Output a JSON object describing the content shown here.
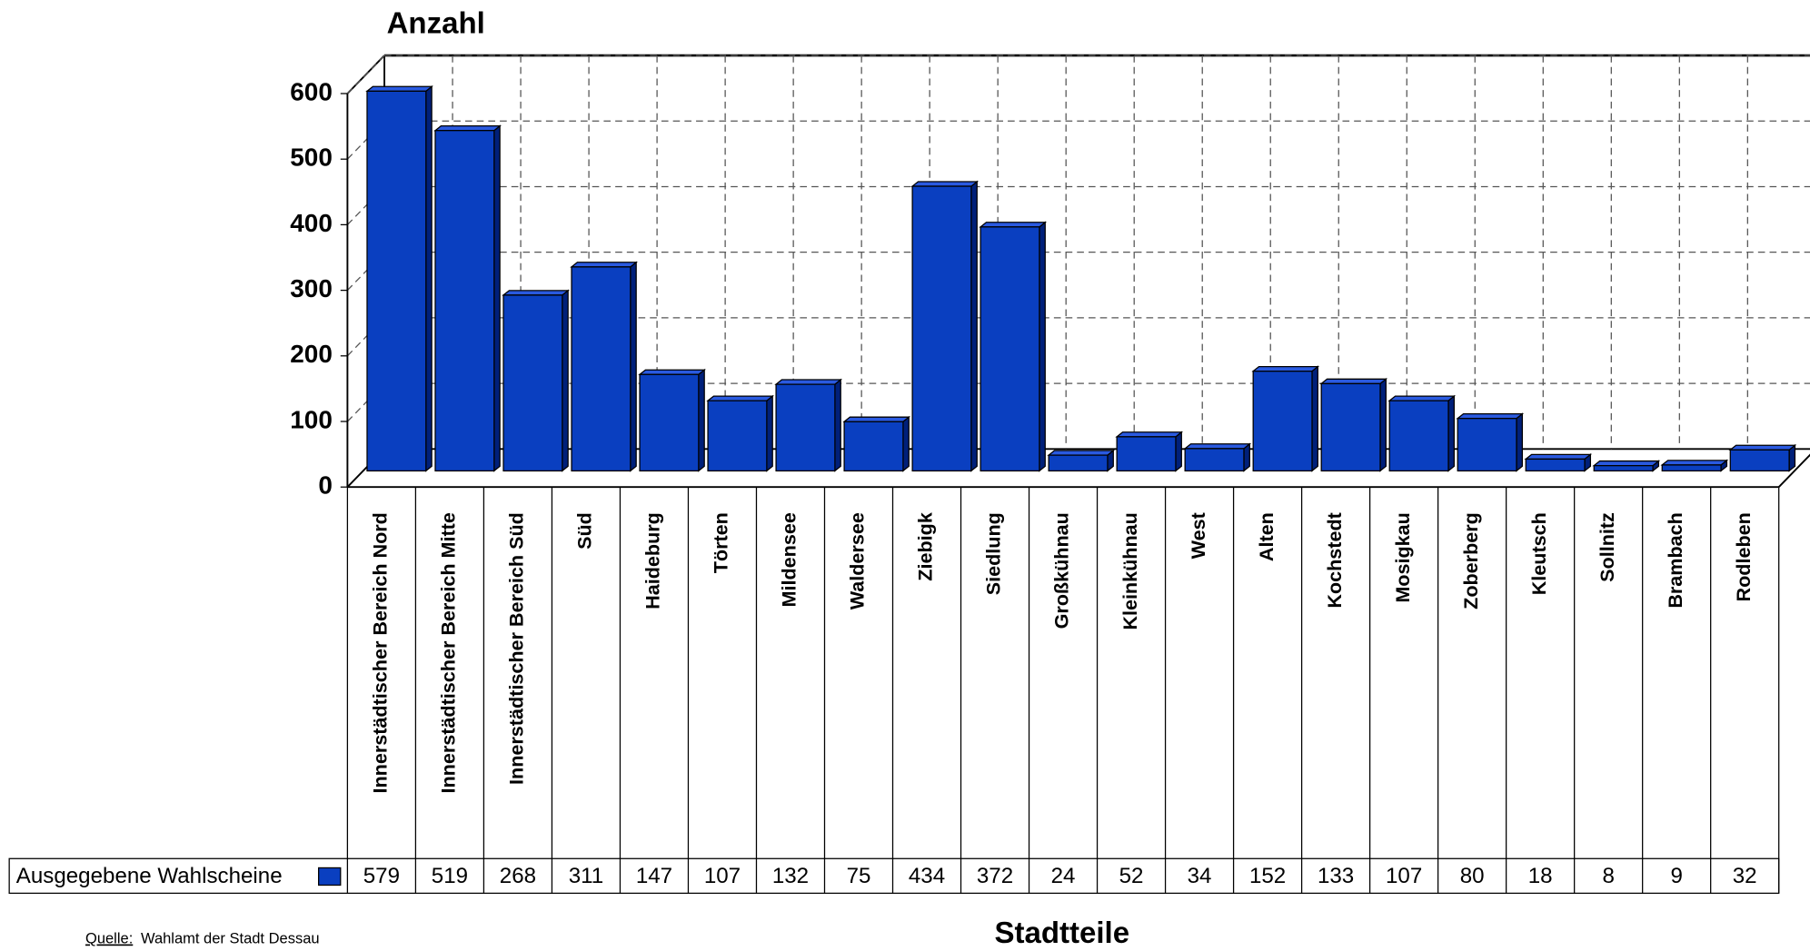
{
  "chart_data": {
    "type": "bar3d",
    "title": "Anzahl",
    "x_label": "Stadtteile",
    "source_label": "Quelle:",
    "source": "Wahlamt der Stadt Dessau",
    "categories": [
      "Innerstädtischer Bereich Nord",
      "Innerstädtischer Bereich Mitte",
      "Innerstädtischer Bereich Süd",
      "Süd",
      "Haideburg",
      "Törten",
      "Mildensee",
      "Waldersee",
      "Ziebigk",
      "Siedlung",
      "Großkühnau",
      "Kleinkühnau",
      "West",
      "Alten",
      "Kochstedt",
      "Mosigkau",
      "Zoberberg",
      "Kleutsch",
      "Sollnitz",
      "Brambach",
      "Rodleben"
    ],
    "series": [
      {
        "name": "Ausgegebene Wahlscheine",
        "color": "#0a3fc0",
        "values": [
          579,
          519,
          268,
          311,
          147,
          107,
          132,
          75,
          434,
          372,
          24,
          52,
          34,
          152,
          133,
          107,
          80,
          18,
          8,
          9,
          32
        ]
      }
    ],
    "ylim": [
      0,
      600
    ],
    "yticks": [
      0,
      100,
      200,
      300,
      400,
      500,
      600
    ],
    "grid": true
  }
}
